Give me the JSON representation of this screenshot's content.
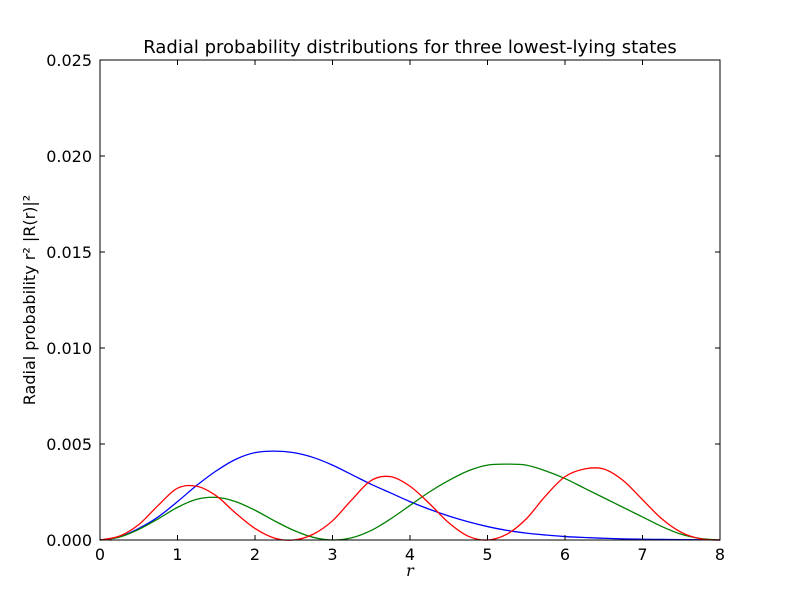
{
  "chart_data": {
    "type": "line",
    "title": "Radial probability distributions for three lowest-lying states",
    "xlabel": "r",
    "ylabel": "Radial probability r² |R(r)|²",
    "xlim": [
      0,
      8
    ],
    "ylim": [
      0,
      0.025
    ],
    "x_ticks": [
      "0",
      "1",
      "2",
      "3",
      "4",
      "5",
      "6",
      "7",
      "8"
    ],
    "y_ticks": [
      "0.000",
      "0.005",
      "0.010",
      "0.015",
      "0.020",
      "0.025"
    ],
    "grid": false,
    "legend": "none",
    "x": [
      0,
      0.25,
      0.5,
      0.75,
      1.0,
      1.25,
      1.5,
      1.75,
      2.0,
      2.25,
      2.5,
      2.75,
      3.0,
      3.25,
      3.5,
      3.75,
      4.0,
      4.25,
      4.5,
      4.75,
      5.0,
      5.25,
      5.5,
      5.75,
      6.0,
      6.25,
      6.5,
      6.75,
      7.0,
      7.25,
      7.5,
      7.75,
      8.0
    ],
    "series": [
      {
        "color": "#0000ff",
        "values": [
          0,
          0.00016,
          0.0006,
          0.0012,
          0.002,
          0.00285,
          0.0036,
          0.0042,
          0.00455,
          0.00463,
          0.00455,
          0.0043,
          0.0039,
          0.0034,
          0.0029,
          0.00245,
          0.002,
          0.0016,
          0.00125,
          0.00095,
          0.0007,
          0.0005,
          0.00036,
          0.00026,
          0.00018,
          0.00013,
          9e-05,
          6e-05,
          4e-05,
          3e-05,
          2e-05,
          1e-05,
          0
        ]
      },
      {
        "color": "#008000",
        "values": [
          0,
          0.00015,
          0.00055,
          0.0011,
          0.0017,
          0.00212,
          0.00222,
          0.002,
          0.00155,
          0.001,
          0.0005,
          0.00014,
          0,
          0.00012,
          0.0005,
          0.0011,
          0.0018,
          0.0025,
          0.0031,
          0.0036,
          0.0039,
          0.00395,
          0.0039,
          0.0036,
          0.0032,
          0.0027,
          0.0022,
          0.0017,
          0.0012,
          0.0007,
          0.0003,
          8e-05,
          0
        ]
      },
      {
        "color": "#ff0000",
        "values": [
          0,
          0.0002,
          0.0008,
          0.0018,
          0.0027,
          0.0028,
          0.0023,
          0.0014,
          0.0006,
          0.0001,
          0,
          0.0003,
          0.001,
          0.0021,
          0.0031,
          0.0033,
          0.0028,
          0.0019,
          0.0009,
          0.0002,
          0,
          0.0003,
          0.0011,
          0.0023,
          0.0033,
          0.0037,
          0.0037,
          0.0031,
          0.0021,
          0.0011,
          0.0004,
          6e-05,
          0
        ]
      }
    ]
  }
}
